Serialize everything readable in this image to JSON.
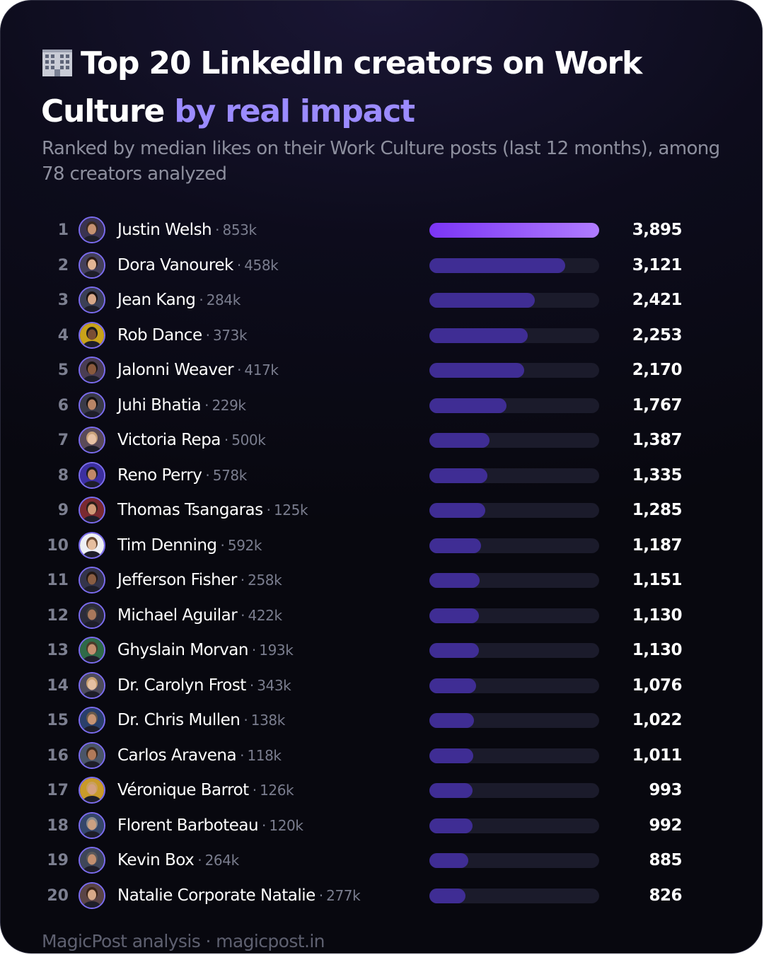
{
  "header": {
    "title_main": "Top 20 LinkedIn creators on Work Culture",
    "title_accent": "by real impact",
    "subtitle": "Ranked by median likes on their Work Culture posts (last 12 months), among 78 creators analyzed",
    "icon": "office-building-icon"
  },
  "footer": {
    "text": "MagicPost analysis · magicpost.in"
  },
  "colors": {
    "accent": "#9b8bff",
    "bar": "#3f2d94",
    "bar_top_start": "#7b35f5",
    "bar_top_end": "#b07cff",
    "track": "#1b1b2b",
    "background": "#0b0a16"
  },
  "chart_data": {
    "type": "bar",
    "orientation": "horizontal",
    "title": "Top 20 LinkedIn creators on Work Culture by real impact",
    "subtitle": "Ranked by median likes on their Work Culture posts (last 12 months), among 78 creators analyzed",
    "xlim": [
      0,
      3895
    ],
    "grid": false,
    "rows": [
      {
        "rank": "1",
        "name": "Justin Welsh",
        "followers": "853k",
        "value": 3895,
        "value_label": "3,895"
      },
      {
        "rank": "2",
        "name": "Dora Vanourek",
        "followers": "458k",
        "value": 3121,
        "value_label": "3,121"
      },
      {
        "rank": "3",
        "name": "Jean Kang",
        "followers": "284k",
        "value": 2421,
        "value_label": "2,421"
      },
      {
        "rank": "4",
        "name": "Rob Dance",
        "followers": "373k",
        "value": 2253,
        "value_label": "2,253"
      },
      {
        "rank": "5",
        "name": "Jalonni Weaver",
        "followers": "417k",
        "value": 2170,
        "value_label": "2,170"
      },
      {
        "rank": "6",
        "name": "Juhi Bhatia",
        "followers": "229k",
        "value": 1767,
        "value_label": "1,767"
      },
      {
        "rank": "7",
        "name": "Victoria Repa",
        "followers": "500k",
        "value": 1387,
        "value_label": "1,387"
      },
      {
        "rank": "8",
        "name": "Reno Perry",
        "followers": "578k",
        "value": 1335,
        "value_label": "1,335"
      },
      {
        "rank": "9",
        "name": "Thomas Tsangaras",
        "followers": "125k",
        "value": 1285,
        "value_label": "1,285"
      },
      {
        "rank": "10",
        "name": "Tim Denning",
        "followers": "592k",
        "value": 1187,
        "value_label": "1,187"
      },
      {
        "rank": "11",
        "name": "Jefferson Fisher",
        "followers": "258k",
        "value": 1151,
        "value_label": "1,151"
      },
      {
        "rank": "12",
        "name": "Michael Aguilar",
        "followers": "422k",
        "value": 1130,
        "value_label": "1,130"
      },
      {
        "rank": "13",
        "name": "Ghyslain Morvan",
        "followers": "193k",
        "value": 1130,
        "value_label": "1,130"
      },
      {
        "rank": "14",
        "name": "Dr. Carolyn Frost",
        "followers": "343k",
        "value": 1076,
        "value_label": "1,076"
      },
      {
        "rank": "15",
        "name": "Dr. Chris Mullen",
        "followers": "138k",
        "value": 1022,
        "value_label": "1,022"
      },
      {
        "rank": "16",
        "name": "Carlos Aravena",
        "followers": "118k",
        "value": 1011,
        "value_label": "1,011"
      },
      {
        "rank": "17",
        "name": "Véronique Barrot",
        "followers": "126k",
        "value": 993,
        "value_label": "993"
      },
      {
        "rank": "18",
        "name": "Florent Barboteau",
        "followers": "120k",
        "value": 992,
        "value_label": "992"
      },
      {
        "rank": "19",
        "name": "Kevin Box",
        "followers": "264k",
        "value": 885,
        "value_label": "885"
      },
      {
        "rank": "20",
        "name": "Natalie Corporate Natalie",
        "followers": "277k",
        "value": 826,
        "value_label": "826"
      }
    ]
  }
}
